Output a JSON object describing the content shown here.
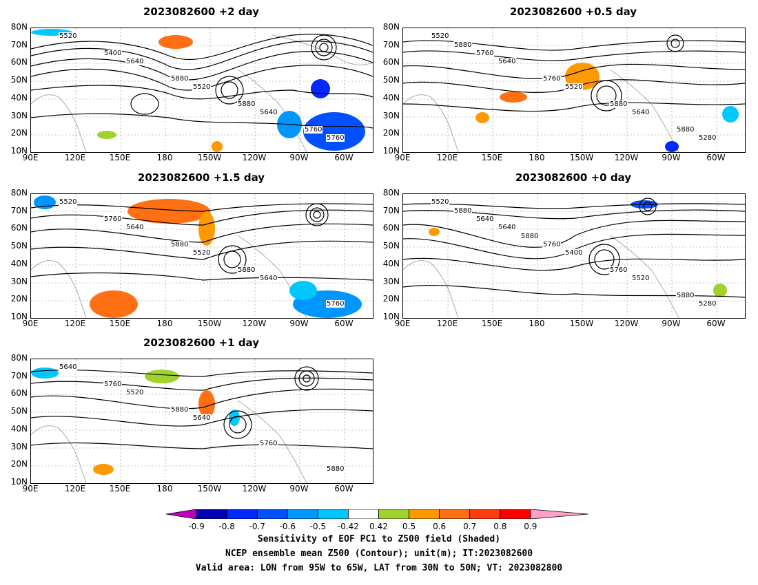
{
  "panels": [
    {
      "title": "2023082600 +2 day",
      "contour_labels": [
        "5520",
        "5640",
        "5520",
        "5640",
        "5760",
        "5400",
        "5880",
        "5880",
        "5760"
      ]
    },
    {
      "title": "2023082600 +0.5 day",
      "contour_labels": [
        "5520",
        "5640",
        "5520",
        "5640",
        "5280",
        "5760",
        "5760",
        "5880",
        "5880",
        "5880"
      ]
    },
    {
      "title": "2023082600 +1.5 day",
      "contour_labels": [
        "5520",
        "5640",
        "5520",
        "5640",
        "5760",
        "5760",
        "5880",
        "5880"
      ]
    },
    {
      "title": "2023082600 +0 day",
      "contour_labels": [
        "5520",
        "5640",
        "5400",
        "5520",
        "5280",
        "5640",
        "5760",
        "5760",
        "5880",
        "5880",
        "5880"
      ]
    },
    {
      "title": "2023082600 +1 day",
      "contour_labels": [
        "5640",
        "5520",
        "5640",
        "5760",
        "5880",
        "5760",
        "5880"
      ]
    }
  ],
  "lat_labels": [
    "80N",
    "70N",
    "60N",
    "50N",
    "40N",
    "30N",
    "20N",
    "10N"
  ],
  "lon_labels": [
    "90E",
    "120E",
    "150E",
    "180",
    "150W",
    "120W",
    "90W",
    "60W"
  ],
  "colorbar": {
    "ticks": [
      "-0.9",
      "-0.8",
      "-0.7",
      "-0.6",
      "-0.5",
      "-0.42",
      "0.42",
      "0.5",
      "0.6",
      "0.7",
      "0.8",
      "0.9"
    ],
    "colors": [
      "#c000c0",
      "#0000b4",
      "#0028ff",
      "#0050ff",
      "#0096ff",
      "#00c8ff",
      "#ffffff",
      "#a0d22e",
      "#ff9900",
      "#ff6f14",
      "#ff3c10",
      "#ff0000",
      "#ffa0c8"
    ]
  },
  "caption": {
    "line1": "Sensitivity of EOF PC1 to Z500 field (Shaded)",
    "line2": "NCEP ensemble mean Z500 (Contour); unit(m); IT:2023082600",
    "line3": "Valid area: LON from 95W to 65W, LAT from 30N to 50N; VT: 2023082800"
  }
}
